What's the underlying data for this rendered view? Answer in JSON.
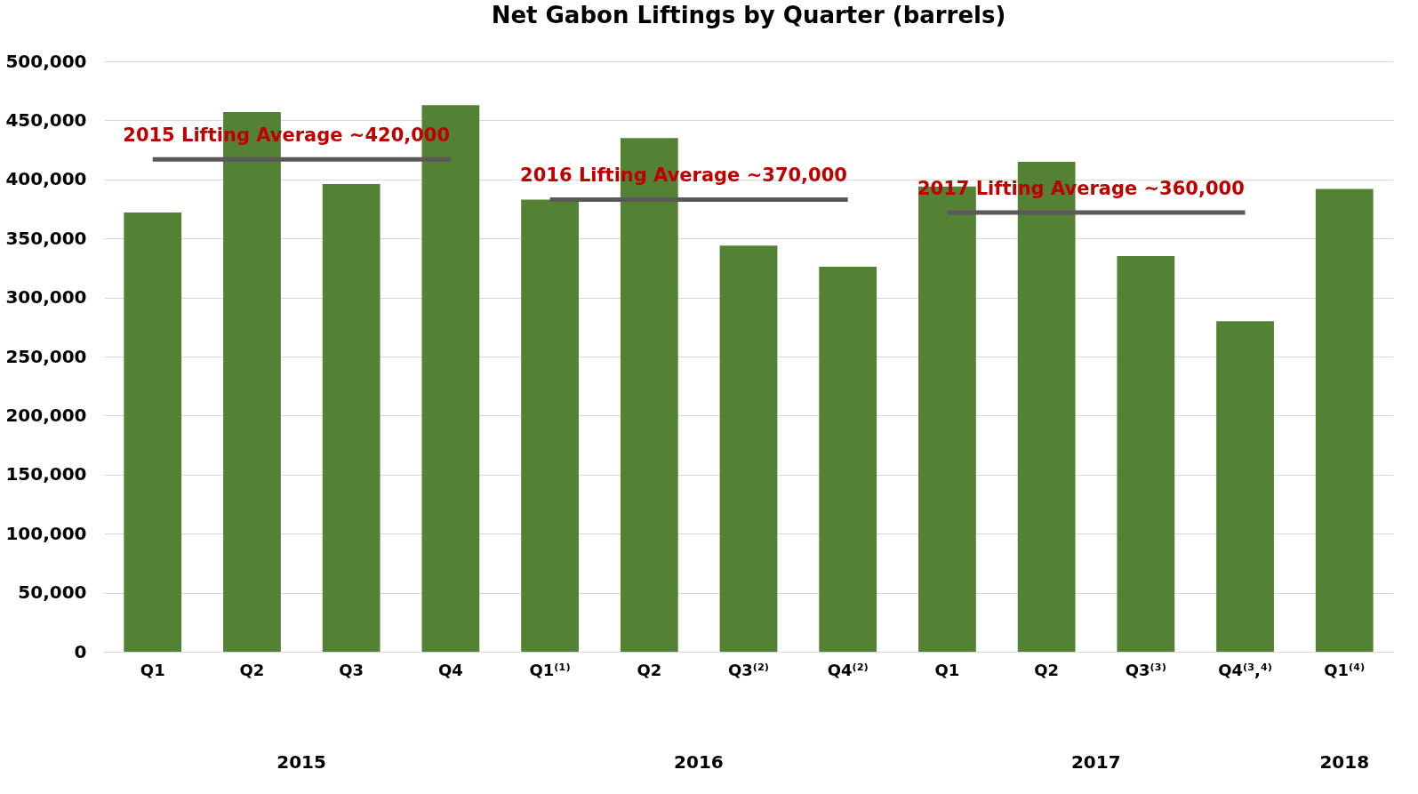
{
  "chart_data": {
    "type": "bar",
    "title": "Net Gabon Liftings by Quarter (barrels)",
    "categories": [
      "Q1",
      "Q2",
      "Q3",
      "Q4",
      "Q1⁽¹⁾",
      "Q2",
      "Q3⁽²⁾",
      "Q4⁽²⁾",
      "Q1",
      "Q2",
      "Q3⁽³⁾",
      "Q4⁽³,⁴⁾",
      "Q1⁽⁴⁾"
    ],
    "series": [
      {
        "color": "#548235",
        "values": [
          372000,
          457000,
          396000,
          463000,
          383000,
          435000,
          344000,
          326000,
          394000,
          415000,
          335000,
          280000,
          392000
        ]
      },
      {
        "type": "line",
        "name": "2015 Lifting Average ~420,000",
        "color": "#595959",
        "values": [
          417000,
          417000,
          417000,
          417000,
          null,
          null,
          null,
          null,
          null,
          null,
          null,
          null,
          null
        ]
      },
      {
        "type": "line",
        "name": "2016 Lifting Average ~370,000",
        "color": "#595959",
        "values": [
          null,
          null,
          null,
          null,
          383000,
          383000,
          383000,
          383000,
          null,
          null,
          null,
          null,
          null
        ]
      },
      {
        "type": "line",
        "name": "2017 Lifting Average ~360,000",
        "color": "#595959",
        "values": [
          null,
          null,
          null,
          null,
          null,
          null,
          null,
          null,
          372000,
          372000,
          372000,
          372000,
          null
        ]
      }
    ],
    "annotations": [
      "2015",
      "2016",
      "2017",
      "2018"
    ],
    "ylim": [
      0,
      500000
    ],
    "yticks": [
      0,
      {
        "value": 50000,
        "label": "50,000"
      },
      {
        "value": 100000,
        "label": "100,000"
      },
      {
        "value": 150000,
        "label": "150,000"
      },
      {
        "value": 200000,
        "label": "200,000"
      },
      {
        "value": 250000,
        "label": "250,000"
      },
      {
        "value": 300000,
        "label": "300,000"
      },
      {
        "value": 350000,
        "label": "350,000"
      },
      {
        "value": 400000,
        "label": "400,000"
      },
      {
        "value": 450000,
        "label": "450,000"
      },
      {
        "value": 500000,
        "label": "500,000"
      }
    ],
    "grid": "y"
  }
}
